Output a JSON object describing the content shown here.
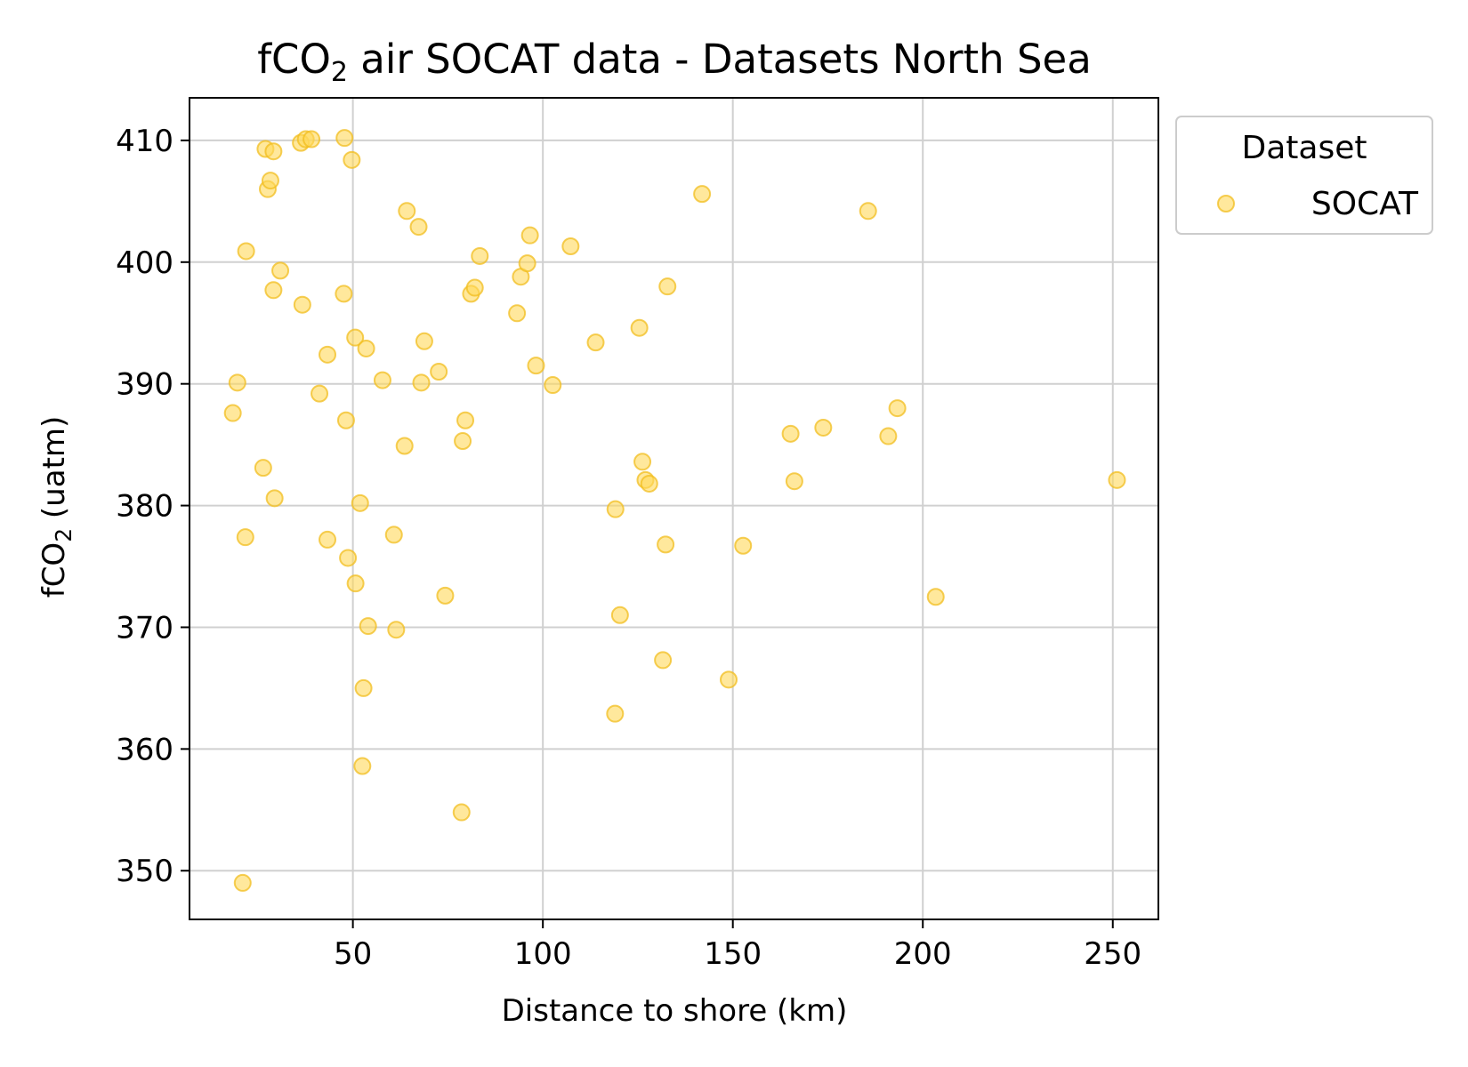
{
  "chart_data": {
    "type": "scatter",
    "title": {
      "main": "fCO",
      "sub": "2",
      "rest": " air SOCAT data - Datasets North Sea"
    },
    "xlabel": "Distance to shore (km)",
    "ylabel": {
      "main": "fCO",
      "sub": "2",
      "rest": " (uatm)"
    },
    "xlim": [
      7,
      262
    ],
    "ylim": [
      346,
      413.5
    ],
    "xticks": [
      50,
      100,
      150,
      200,
      250
    ],
    "yticks": [
      350,
      360,
      370,
      380,
      390,
      400,
      410
    ],
    "grid": true,
    "legend": {
      "title": "Dataset",
      "placement": "outside-top-right"
    },
    "colors": {
      "marker_fill": "#FFD95A",
      "marker_edge": "#F2BE1F",
      "grid": "#d0d0d0"
    },
    "series": [
      {
        "name": "SOCAT",
        "points": [
          [
            21,
            349
          ],
          [
            78.6,
            354.8
          ],
          [
            52.5,
            358.6
          ],
          [
            52.8,
            365
          ],
          [
            148.9,
            365.7
          ],
          [
            119,
            362.9
          ],
          [
            54,
            370.1
          ],
          [
            61.4,
            369.8
          ],
          [
            131.6,
            367.3
          ],
          [
            120.3,
            371
          ],
          [
            203.4,
            372.5
          ],
          [
            74.3,
            372.6
          ],
          [
            50.7,
            373.6
          ],
          [
            48.7,
            375.7
          ],
          [
            43.3,
            377.2
          ],
          [
            21.7,
            377.4
          ],
          [
            60.8,
            377.6
          ],
          [
            132.3,
            376.8
          ],
          [
            152.7,
            376.7
          ],
          [
            29.4,
            380.6
          ],
          [
            51.9,
            380.2
          ],
          [
            119.1,
            379.7
          ],
          [
            26.4,
            383.1
          ],
          [
            63.6,
            384.9
          ],
          [
            78.9,
            385.3
          ],
          [
            126.2,
            383.6
          ],
          [
            127,
            382.1
          ],
          [
            128,
            381.8
          ],
          [
            165.2,
            385.9
          ],
          [
            166.2,
            382
          ],
          [
            173.8,
            386.4
          ],
          [
            190.9,
            385.7
          ],
          [
            193.3,
            388
          ],
          [
            251.1,
            382.1
          ],
          [
            18.4,
            387.6
          ],
          [
            48.2,
            387
          ],
          [
            79.6,
            387
          ],
          [
            19.6,
            390.1
          ],
          [
            41.2,
            389.2
          ],
          [
            57.8,
            390.3
          ],
          [
            68,
            390.1
          ],
          [
            72.6,
            391
          ],
          [
            98.2,
            391.5
          ],
          [
            102.6,
            389.9
          ],
          [
            43.3,
            392.4
          ],
          [
            50.6,
            393.8
          ],
          [
            53.5,
            392.9
          ],
          [
            68.8,
            393.5
          ],
          [
            93.2,
            395.8
          ],
          [
            113.9,
            393.4
          ],
          [
            125.4,
            394.6
          ],
          [
            29.1,
            397.7
          ],
          [
            36.7,
            396.5
          ],
          [
            47.6,
            397.4
          ],
          [
            81.1,
            397.4
          ],
          [
            82.1,
            397.9
          ],
          [
            94.2,
            398.8
          ],
          [
            95.9,
            399.9
          ],
          [
            132.8,
            398
          ],
          [
            21.9,
            400.9
          ],
          [
            30.9,
            399.3
          ],
          [
            83.4,
            400.5
          ],
          [
            96.6,
            402.2
          ],
          [
            107.3,
            401.3
          ],
          [
            67.3,
            402.9
          ],
          [
            64.2,
            404.2
          ],
          [
            141.9,
            405.6
          ],
          [
            185.6,
            404.2
          ],
          [
            27.6,
            406
          ],
          [
            28.3,
            406.7
          ],
          [
            27,
            409.3
          ],
          [
            29.1,
            409.1
          ],
          [
            36.3,
            409.8
          ],
          [
            37.6,
            410.1
          ],
          [
            39.1,
            410.1
          ],
          [
            47.8,
            410.2
          ],
          [
            49.7,
            408.4
          ]
        ]
      }
    ]
  }
}
